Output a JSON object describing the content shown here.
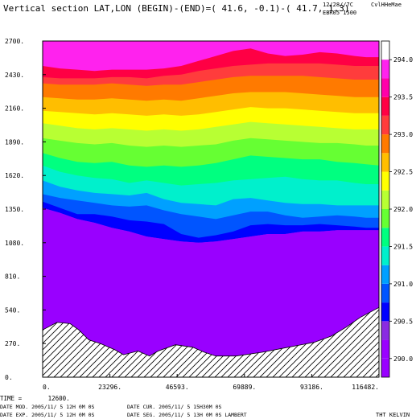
{
  "header": {
    "title": "Vertical section LAT,LON (BEGIN)-(END)=( 41.6, -0.1)-( 41.7,  1.3)",
    "date_line": "12/28//7C",
    "tag_line": "CvlHHeMae",
    "model_line": "EBR05 1500"
  },
  "footer": {
    "time_label": "TIME = ",
    "time_value": "12600.",
    "line1_left": "DATE MOD. 2005/11/ 5  12H 0M 0S",
    "line1_right": "DATE CUR. 2005/11/ 5  15H30M 0S",
    "line2_left": "DATE EXP. 2005/11/ 5  12H 0M 0S",
    "line2_right": "DATE SEG. 2005/11/ 5  13H 0M 0S  LAMBERT",
    "units": "THT KELVIN"
  },
  "chart_data": {
    "type": "area",
    "title": "Vertical section LAT,LON (BEGIN)-(END)=( 41.6, -0.1)-( 41.7,  1.3)",
    "xlabel": "",
    "ylabel": "",
    "xlim": [
      0,
      116482
    ],
    "ylim": [
      0,
      2700
    ],
    "x_ticks": [
      0,
      23296,
      46593,
      69889,
      93186,
      116482
    ],
    "x_tick_labels": [
      "0.",
      "23296.",
      "46593.",
      "69889.",
      "93186.",
      "116482."
    ],
    "y_ticks": [
      0,
      270,
      540,
      810,
      1080,
      1350,
      1620,
      1890,
      2160,
      2430,
      2700
    ],
    "y_tick_labels": [
      "0.",
      "270.",
      "540.",
      "810.",
      "1080.",
      "1350.",
      "1620.",
      "1890.",
      "2160.",
      "2430.",
      "2700."
    ],
    "colorbar": {
      "levels": [
        289.75,
        290.0,
        290.25,
        290.5,
        290.75,
        291.0,
        291.25,
        291.5,
        291.75,
        292.0,
        292.25,
        292.5,
        292.75,
        293.0,
        293.25,
        293.5,
        293.75,
        294.0,
        294.25
      ],
      "colors": [
        "#9900ff",
        "#9a00ff",
        "#8a2be2",
        "#0000ff",
        "#0055ff",
        "#00a0ff",
        "#00f0cc",
        "#00ff80",
        "#66ff33",
        "#b8ff33",
        "#ffff00",
        "#ffbe00",
        "#ff7a00",
        "#ff3c3c",
        "#ff0044",
        "#ff00aa",
        "#ff22ee"
      ],
      "tick_values": [
        290.0,
        290.5,
        291.0,
        291.5,
        292.0,
        292.5,
        293.0,
        293.5,
        294.0
      ],
      "tick_labels": [
        "290.0",
        "290.5",
        "291.0",
        "291.5",
        "292.0",
        "292.5",
        "293.0",
        "293.5",
        "294.0"
      ]
    },
    "terrain": {
      "x": [
        0,
        5000,
        9500,
        12500,
        16000,
        20000,
        25000,
        28000,
        33000,
        37000,
        40000,
        46000,
        52000,
        56000,
        60000,
        67000,
        76000,
        85000,
        94000,
        100000,
        105000,
        110000,
        116482
      ],
      "y": [
        380,
        440,
        430,
        380,
        300,
        270,
        220,
        180,
        210,
        170,
        210,
        260,
        240,
        200,
        170,
        170,
        200,
        240,
        280,
        330,
        400,
        480,
        560
      ]
    },
    "isolines": {
      "x": [
        0,
        6000,
        12000,
        18000,
        24000,
        30000,
        36000,
        42000,
        48000,
        54000,
        60000,
        66000,
        72000,
        78000,
        84000,
        90000,
        96000,
        102000,
        108000,
        112000,
        116482
      ],
      "levels": [
        {
          "value": 290.75,
          "y": [
            1360,
            1320,
            1270,
            1240,
            1200,
            1170,
            1130,
            1110,
            1090,
            1080,
            1090,
            1110,
            1130,
            1150,
            1150,
            1170,
            1170,
            1180,
            1180,
            1180,
            1180
          ]
        },
        {
          "value": 291.0,
          "y": [
            1410,
            1360,
            1310,
            1310,
            1290,
            1260,
            1250,
            1230,
            1150,
            1120,
            1140,
            1170,
            1220,
            1230,
            1220,
            1220,
            1230,
            1220,
            1210,
            1200,
            1200
          ]
        },
        {
          "value": 291.25,
          "y": [
            1470,
            1440,
            1420,
            1400,
            1380,
            1370,
            1380,
            1340,
            1310,
            1290,
            1270,
            1300,
            1330,
            1330,
            1300,
            1280,
            1290,
            1300,
            1290,
            1280,
            1280
          ]
        },
        {
          "value": 291.5,
          "y": [
            1580,
            1530,
            1500,
            1480,
            1470,
            1460,
            1480,
            1430,
            1400,
            1390,
            1380,
            1430,
            1440,
            1420,
            1400,
            1390,
            1390,
            1380,
            1380,
            1380,
            1380
          ]
        },
        {
          "value": 291.75,
          "y": [
            1700,
            1650,
            1620,
            1600,
            1590,
            1560,
            1580,
            1560,
            1540,
            1550,
            1560,
            1580,
            1590,
            1600,
            1610,
            1590,
            1580,
            1580,
            1560,
            1550,
            1550
          ]
        },
        {
          "value": 292.0,
          "y": [
            1800,
            1760,
            1730,
            1720,
            1730,
            1700,
            1690,
            1700,
            1690,
            1700,
            1720,
            1750,
            1780,
            1770,
            1760,
            1750,
            1750,
            1730,
            1720,
            1710,
            1700
          ]
        },
        {
          "value": 292.25,
          "y": [
            1920,
            1900,
            1880,
            1870,
            1880,
            1860,
            1850,
            1860,
            1850,
            1860,
            1870,
            1900,
            1920,
            1910,
            1900,
            1890,
            1880,
            1880,
            1870,
            1860,
            1860
          ]
        },
        {
          "value": 292.5,
          "y": [
            2040,
            2020,
            2000,
            1990,
            2000,
            1990,
            1980,
            1990,
            1980,
            1990,
            2010,
            2030,
            2050,
            2040,
            2030,
            2020,
            2010,
            2000,
            1990,
            1990,
            1990
          ]
        },
        {
          "value": 292.75,
          "y": [
            2140,
            2130,
            2120,
            2110,
            2120,
            2110,
            2100,
            2110,
            2100,
            2110,
            2130,
            2150,
            2170,
            2160,
            2160,
            2150,
            2140,
            2130,
            2120,
            2120,
            2120
          ]
        },
        {
          "value": 293.0,
          "y": [
            2250,
            2240,
            2230,
            2230,
            2240,
            2230,
            2220,
            2230,
            2220,
            2240,
            2260,
            2280,
            2290,
            2290,
            2290,
            2280,
            2270,
            2260,
            2250,
            2250,
            2250
          ]
        },
        {
          "value": 293.25,
          "y": [
            2360,
            2350,
            2350,
            2350,
            2360,
            2350,
            2340,
            2350,
            2350,
            2370,
            2390,
            2410,
            2420,
            2420,
            2420,
            2420,
            2410,
            2400,
            2390,
            2390,
            2390
          ]
        },
        {
          "value": 293.5,
          "y": [
            2410,
            2400,
            2400,
            2400,
            2410,
            2410,
            2400,
            2420,
            2430,
            2460,
            2480,
            2500,
            2510,
            2520,
            2520,
            2520,
            2520,
            2510,
            2500,
            2500,
            2500
          ]
        },
        {
          "value": 293.75,
          "y": [
            2500,
            2480,
            2470,
            2460,
            2470,
            2470,
            2470,
            2480,
            2500,
            2540,
            2580,
            2620,
            2640,
            2600,
            2580,
            2590,
            2610,
            2600,
            2580,
            2570,
            2570
          ]
        }
      ]
    }
  }
}
